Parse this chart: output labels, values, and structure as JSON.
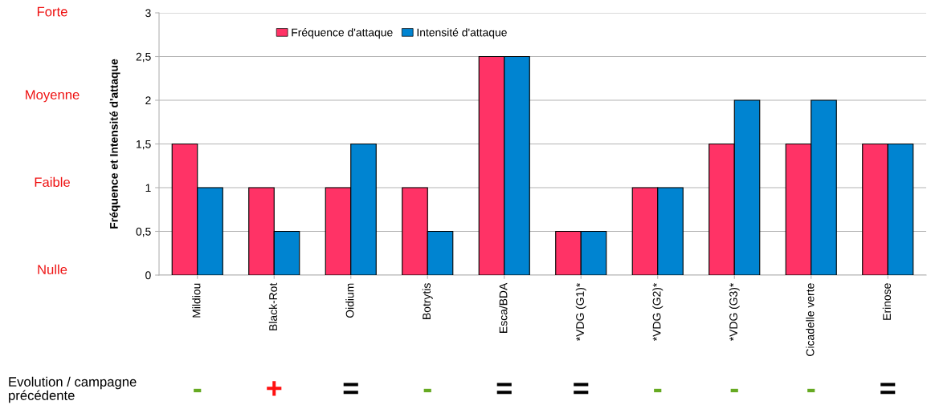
{
  "chart_data": {
    "type": "bar",
    "ylabel": "Fréquence et Intensité d'attaque",
    "categories": [
      "Mildiou",
      "Black-Rot",
      "Oidium",
      "Botrytis",
      "Esca/BDA",
      "*VDG (G1)*",
      "*VDG (G2)*",
      "*VDG (G3)*",
      "Cicadelle verte",
      "Erinose"
    ],
    "series": [
      {
        "name": "Fréquence d'attaque",
        "color": "#ff3366",
        "values": [
          1.5,
          1,
          1,
          1,
          2.5,
          0.5,
          1,
          1.5,
          1.5,
          1.5
        ]
      },
      {
        "name": "Intensité d'attaque",
        "color": "#0084d1",
        "values": [
          1,
          0.5,
          1.5,
          0.5,
          2.5,
          0.5,
          1,
          2,
          2,
          1.5
        ]
      }
    ],
    "ylim": [
      0,
      3
    ],
    "yticks": [
      0,
      {
        "value": 0.5,
        "label": "0,5"
      },
      1,
      {
        "value": 1.5,
        "label": "1,5"
      },
      2,
      {
        "value": 2.5,
        "label": "2,5"
      },
      3
    ],
    "grid": "y",
    "legend": "top",
    "annotations": [
      "Forte",
      "Moyenne",
      "Faible",
      "Nulle",
      "Evolution / campagne\nprécédente",
      "-",
      "+",
      "=",
      "-",
      "=",
      "=",
      "-",
      "-",
      "-",
      "="
    ]
  }
}
